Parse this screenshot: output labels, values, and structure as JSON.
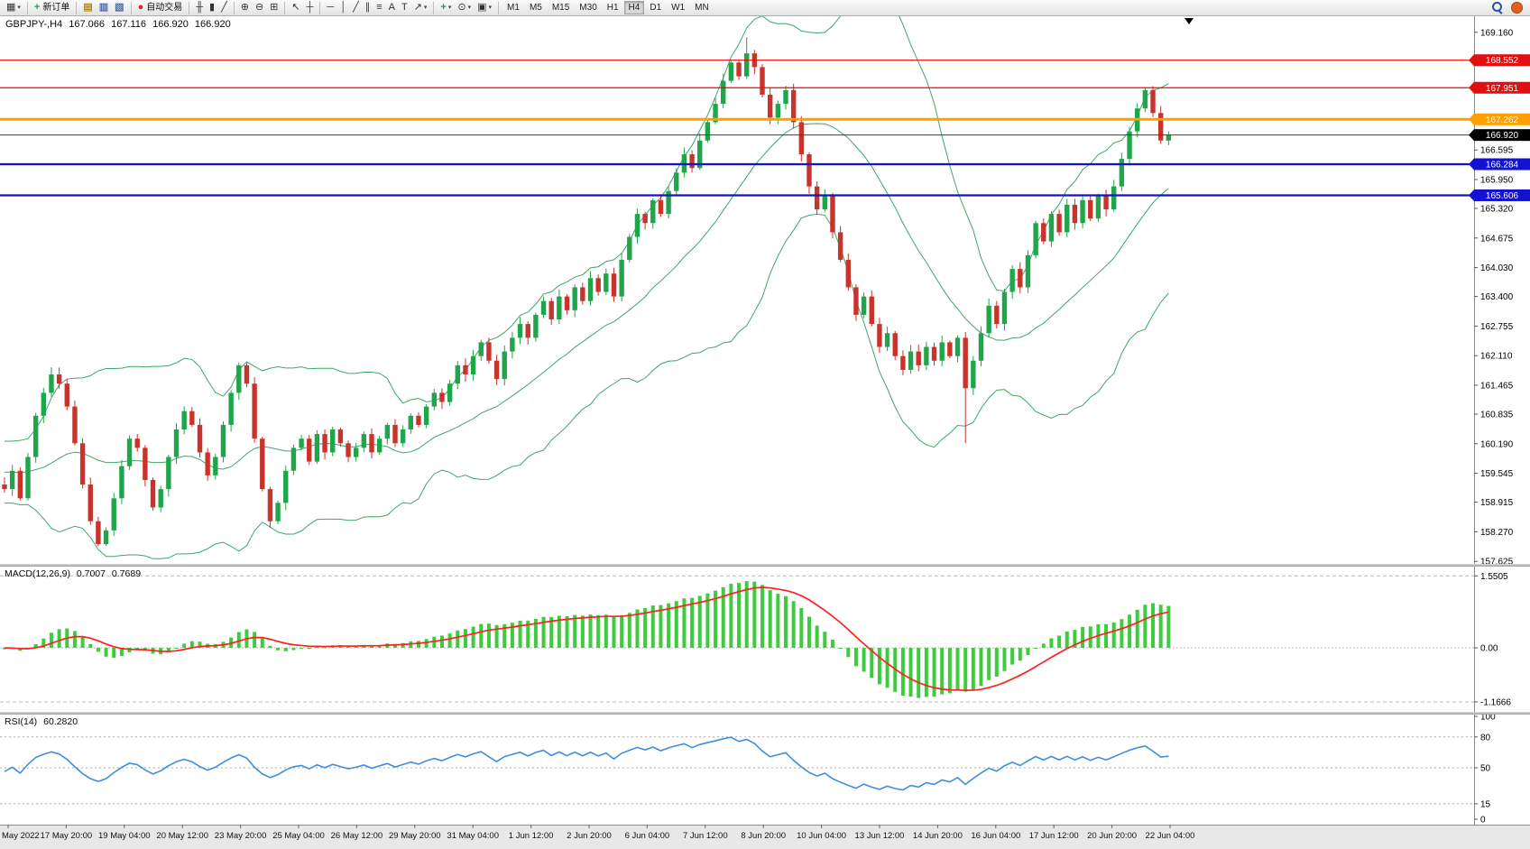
{
  "toolbar": {
    "items": [
      {
        "type": "icon",
        "name": "new-chart-button",
        "glyph": "▦",
        "caret": true
      },
      {
        "type": "sep"
      },
      {
        "type": "labeled",
        "name": "new-order-button",
        "glyph": "+",
        "glyph_color": "#18A04A",
        "label": "新订单"
      },
      {
        "type": "sep"
      },
      {
        "type": "icon",
        "name": "market-watch-button",
        "glyph": "▤",
        "glyph_color": "#B8860B"
      },
      {
        "type": "icon",
        "name": "data-window-button",
        "glyph": "▥",
        "glyph_color": "#4A6DA8"
      },
      {
        "type": "icon",
        "name": "navigator-button",
        "glyph": "▧",
        "glyph_color": "#4A6DA8"
      },
      {
        "type": "sep"
      },
      {
        "type": "labeled",
        "name": "auto-trading-button",
        "glyph": "●",
        "glyph_color": "#D03025",
        "label": "自动交易"
      },
      {
        "type": "sep"
      },
      {
        "type": "icon",
        "name": "bar-chart-button",
        "glyph": "╫"
      },
      {
        "type": "icon",
        "name": "candlestick-chart-button",
        "glyph": "▮"
      },
      {
        "type": "icon",
        "name": "line-chart-button",
        "glyph": "╱"
      },
      {
        "type": "sep"
      },
      {
        "type": "icon",
        "name": "zoom-in-button",
        "glyph": "⊕"
      },
      {
        "type": "icon",
        "name": "zoom-out-button",
        "glyph": "⊖"
      },
      {
        "type": "icon",
        "name": "tile-windows-button",
        "glyph": "⊞"
      },
      {
        "type": "sep"
      },
      {
        "type": "icon",
        "name": "cursor-button",
        "glyph": "↖"
      },
      {
        "type": "icon",
        "name": "crosshair-button",
        "glyph": "┼"
      },
      {
        "type": "sep"
      },
      {
        "type": "icon",
        "name": "horizontal-line-button",
        "glyph": "─"
      },
      {
        "type": "icon",
        "name": "vertical-line-button",
        "glyph": "│"
      },
      {
        "type": "icon",
        "name": "trendline-button",
        "glyph": "╱"
      },
      {
        "type": "icon",
        "name": "channel-button",
        "glyph": "∥"
      },
      {
        "type": "icon",
        "name": "fibonacci-button",
        "glyph": "≡"
      },
      {
        "type": "icon",
        "name": "text-button",
        "glyph": "A"
      },
      {
        "type": "icon",
        "name": "label-button",
        "glyph": "T"
      },
      {
        "type": "icon",
        "name": "arrows-button",
        "glyph": "↗",
        "caret": true
      },
      {
        "type": "sep"
      },
      {
        "type": "icon",
        "name": "indicators-button",
        "glyph": "+",
        "glyph_color": "#18A04A",
        "caret": true
      },
      {
        "type": "icon",
        "name": "periods-button",
        "glyph": "⊙",
        "caret": true
      },
      {
        "type": "icon",
        "name": "templates-button",
        "glyph": "▣",
        "caret": true
      },
      {
        "type": "sep"
      }
    ],
    "timeframes": {
      "items": [
        "M1",
        "M5",
        "M15",
        "M30",
        "H1",
        "H4",
        "D1",
        "W1",
        "MN"
      ],
      "active": "H4"
    }
  },
  "chart": {
    "header": {
      "symbol_period": "GBPJPY-,H4",
      "open": "167.066",
      "high": "167.116",
      "low": "166.920",
      "close": "166.920"
    },
    "price_axis": {
      "labels": [
        "169.160",
        "166.595",
        "165.950",
        "165.320",
        "164.675",
        "164.030",
        "163.400",
        "162.755",
        "162.110",
        "161.465",
        "160.835",
        "160.190",
        "159.545",
        "158.915",
        "158.270",
        "157.625"
      ]
    },
    "levels": [
      {
        "display": "168.552",
        "value": 168.552,
        "line_color": "#FF0000",
        "line_width": 1.2,
        "badge_color": "#E01010"
      },
      {
        "display": "167.951",
        "value": 167.951,
        "line_color": "#FF0000",
        "line_width": 1.2,
        "badge_color": "#E01010"
      },
      {
        "display": "167.262",
        "value": 167.262,
        "line_color": "#FF9F00",
        "line_width": 3,
        "badge_color": "#FF9F00"
      },
      {
        "display": "166.284",
        "value": 166.284,
        "line_color": "#1313CF",
        "line_width": 2.2,
        "badge_color": "#1313CF"
      },
      {
        "display": "165.606",
        "value": 165.606,
        "line_color": "#1313CF",
        "line_width": 2.2,
        "badge_color": "#1313CF"
      }
    ],
    "current_price": {
      "display": "166.920",
      "value": 166.92,
      "line_color": "#3C3C3C",
      "badge_color": "#000000"
    }
  },
  "macd": {
    "label": "MACD(12,26,9)",
    "value_main": "0.7007",
    "value_signal": "0.7689",
    "axis": [
      "1.5505",
      "0.00",
      "-1.1666"
    ]
  },
  "rsi": {
    "label": "RSI(14)",
    "value": "60.2820",
    "axis": [
      "100",
      "80",
      "50",
      "15",
      "0"
    ],
    "levels": [
      80,
      50,
      15
    ]
  },
  "time_axis": {
    "labels": [
      "May 2022",
      "17 May 20:00",
      "19 May 04:00",
      "20 May 12:00",
      "23 May 20:00",
      "25 May 04:00",
      "26 May 12:00",
      "29 May 20:00",
      "31 May 04:00",
      "1 Jun 12:00",
      "2 Jun 20:00",
      "6 Jun 04:00",
      "7 Jun 12:00",
      "8 Jun 20:00",
      "10 Jun 04:00",
      "13 Jun 12:00",
      "14 Jun 20:00",
      "16 Jun 04:00",
      "17 Jun 12:00",
      "20 Jun 20:00",
      "22 Jun 04:00"
    ]
  },
  "chart_data": {
    "type": "candlestick",
    "symbol": "GBPJPY",
    "timeframe": "H4",
    "x_start_label": "May 2022",
    "x_end_label": "22 Jun 04:00",
    "price_range": {
      "visible_max": 169.51,
      "visible_min": 157.55
    },
    "warmup": 30,
    "closes": [
      159.5,
      159.8,
      159.2,
      158.8,
      159.3,
      159.9,
      160.2,
      159.7,
      159.4,
      159.8,
      160.1,
      159.6,
      159.2,
      159.5,
      159.9,
      160.3,
      159.8,
      159.5,
      159.1,
      159.4,
      159.7,
      160.0,
      159.6,
      159.3,
      159.0,
      159.4,
      159.8,
      160.1,
      159.7,
      159.3,
      159.2,
      159.6,
      159.0,
      159.9,
      160.8,
      161.3,
      161.7,
      161.5,
      161.0,
      160.2,
      159.3,
      158.5,
      158.0,
      158.3,
      159.0,
      159.7,
      160.3,
      160.1,
      159.4,
      158.8,
      159.2,
      159.9,
      160.5,
      160.9,
      160.6,
      160.0,
      159.5,
      159.9,
      160.6,
      161.3,
      161.9,
      161.5,
      160.3,
      159.2,
      158.5,
      158.9,
      159.6,
      160.1,
      160.3,
      159.8,
      160.4,
      160.0,
      160.5,
      160.2,
      159.9,
      160.1,
      160.4,
      160.0,
      160.3,
      160.6,
      160.2,
      160.5,
      160.8,
      160.6,
      161.0,
      161.3,
      161.1,
      161.5,
      161.9,
      161.7,
      162.1,
      162.4,
      162.0,
      161.6,
      162.2,
      162.5,
      162.8,
      162.5,
      163.0,
      163.3,
      162.9,
      163.4,
      163.1,
      163.6,
      163.3,
      163.8,
      163.5,
      163.9,
      163.4,
      164.2,
      164.7,
      165.2,
      165.0,
      165.5,
      165.2,
      165.7,
      166.1,
      166.5,
      166.2,
      166.8,
      167.2,
      167.6,
      168.1,
      168.5,
      168.2,
      168.7,
      168.4,
      167.8,
      167.3,
      167.6,
      167.9,
      167.2,
      166.5,
      165.8,
      165.3,
      165.6,
      164.8,
      164.2,
      163.6,
      163.0,
      163.4,
      162.8,
      162.3,
      162.6,
      162.1,
      161.8,
      162.2,
      161.9,
      162.3,
      162.0,
      162.4,
      162.1,
      162.5,
      161.4,
      162.0,
      162.6,
      163.2,
      162.8,
      163.5,
      164.0,
      163.6,
      164.3,
      165.0,
      164.6,
      165.2,
      164.8,
      165.4,
      165.0,
      165.5,
      165.1,
      165.6,
      165.3,
      165.8,
      166.4,
      167.0,
      167.5,
      167.9,
      167.4,
      166.8,
      166.92
    ],
    "special_wicks": [
      {
        "index": 123,
        "low": 160.2
      },
      {
        "index": 95,
        "high": 169.05
      }
    ],
    "bollinger": {
      "period": 20,
      "deviation": 2
    },
    "macd_params": {
      "fast": 12,
      "slow": 26,
      "signal": 9
    },
    "rsi_period": 14,
    "colors": {
      "up": "#1FA54A",
      "down": "#C8332B",
      "bollinger": "#3FA66B",
      "macd_histogram": "#3ECC3E",
      "macd_signal": "#FF2020",
      "rsi": "#3E8EDE"
    }
  }
}
